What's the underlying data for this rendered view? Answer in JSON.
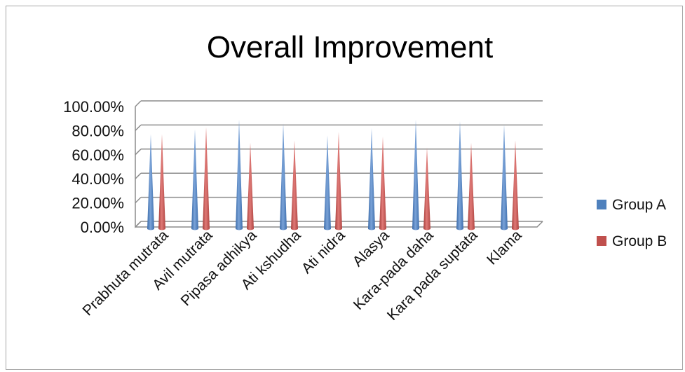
{
  "chart_data": {
    "type": "bar",
    "shape": "cone",
    "title": "Overall Improvement",
    "categories": [
      "Prabhuta mutrata",
      "Avil mutrata",
      "Pipasa adhikya",
      "Ati kshudha",
      "Ati nidra",
      "Alasya",
      "Kara-pada daha",
      "Kara pada suptata",
      "Klama"
    ],
    "series": [
      {
        "name": "Group A",
        "color": "#4f81bd",
        "values": [
          0.77,
          0.81,
          0.89,
          0.86,
          0.76,
          0.82,
          0.89,
          0.88,
          0.85
        ]
      },
      {
        "name": "Group B",
        "color": "#c0504d",
        "values": [
          0.77,
          0.83,
          0.7,
          0.72,
          0.79,
          0.75,
          0.66,
          0.7,
          0.72
        ]
      }
    ],
    "yticks": [
      "0.00%",
      "20.00%",
      "40.00%",
      "60.00%",
      "80.00%",
      "100.00%"
    ],
    "ylim": [
      0,
      1
    ],
    "grid": true,
    "legend": "right"
  }
}
